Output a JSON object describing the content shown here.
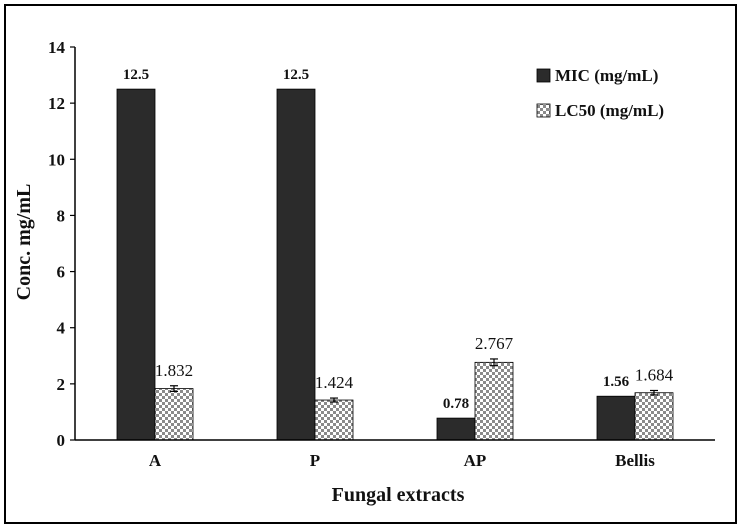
{
  "chart_data": {
    "type": "bar",
    "title": "",
    "xlabel": "Fungal extracts",
    "ylabel": "Conc. mg/mL",
    "ylim": [
      0,
      14
    ],
    "yticks": [
      "0",
      "2",
      "4",
      "6",
      "8",
      "10",
      "12",
      "14"
    ],
    "categories": [
      "A",
      "P",
      "AP",
      "Bellis"
    ],
    "series": [
      {
        "name": "MIC (mg/mL)",
        "values": [
          12.5,
          12.5,
          0.78,
          1.56
        ],
        "labels": [
          "12.5",
          "12.5",
          "0.78",
          "1.56"
        ],
        "color": "#2b2b2b",
        "pattern": "solid"
      },
      {
        "name": "LC50 (mg/mL)",
        "values": [
          1.832,
          1.424,
          2.767,
          1.684
        ],
        "labels": [
          "1.832",
          "1.424",
          "2.767",
          "1.684"
        ],
        "errors": [
          0.1,
          0.07,
          0.12,
          0.08
        ],
        "color": "#bbbbbb",
        "pattern": "checker"
      }
    ],
    "legend": "top-right",
    "grid": false
  }
}
